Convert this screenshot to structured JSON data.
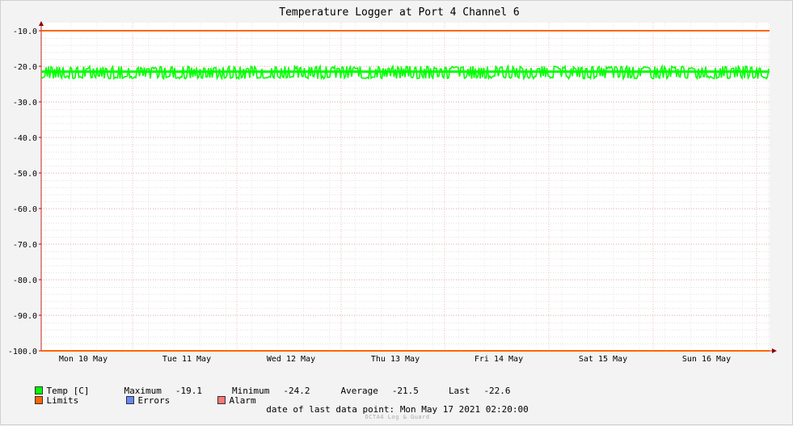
{
  "chart_data": {
    "type": "line",
    "title": "Temperature Logger at Port 4 Channel 6",
    "ylim": [
      -100.0,
      -10.0
    ],
    "y_ticks": [
      "-10.0",
      "-20.0",
      "-30.0",
      "-40.0",
      "-50.0",
      "-60.0",
      "-70.0",
      "-80.0",
      "-90.0",
      "-100.0"
    ],
    "x_ticks": [
      "Mon 10 May",
      "Tue 11 May",
      "Wed 12 May",
      "Thu 13 May",
      "Fri 14 May",
      "Sat 15 May",
      "Sun 16 May"
    ],
    "grid": true,
    "series": [
      {
        "name": "Temp [C]",
        "color": "#00ff00",
        "band": [
          -23.5,
          -20.0
        ],
        "typical": -21.5
      },
      {
        "name": "Limits",
        "color": "#ff6600",
        "values": [
          -10.0,
          -100.0
        ]
      }
    ],
    "stats": {
      "max_label": "Maximum",
      "max": "-19.1",
      "min_label": "Minimum",
      "min": "-24.2",
      "avg_label": "Average",
      "avg": "-21.5",
      "last_label": "Last",
      "last": "-22.6"
    },
    "legend": [
      {
        "name": "Temp [C]",
        "color": "#00ff00"
      },
      {
        "name": "Limits",
        "color": "#ff6600"
      },
      {
        "name": "Errors",
        "color": "#6688ff"
      },
      {
        "name": "Alarm",
        "color": "#ff7777"
      }
    ]
  },
  "footer": {
    "label": "date of last data point:",
    "value": "Mon May 17 2021 02:20:00",
    "watermark": "OCTA4 Log & Guard"
  }
}
